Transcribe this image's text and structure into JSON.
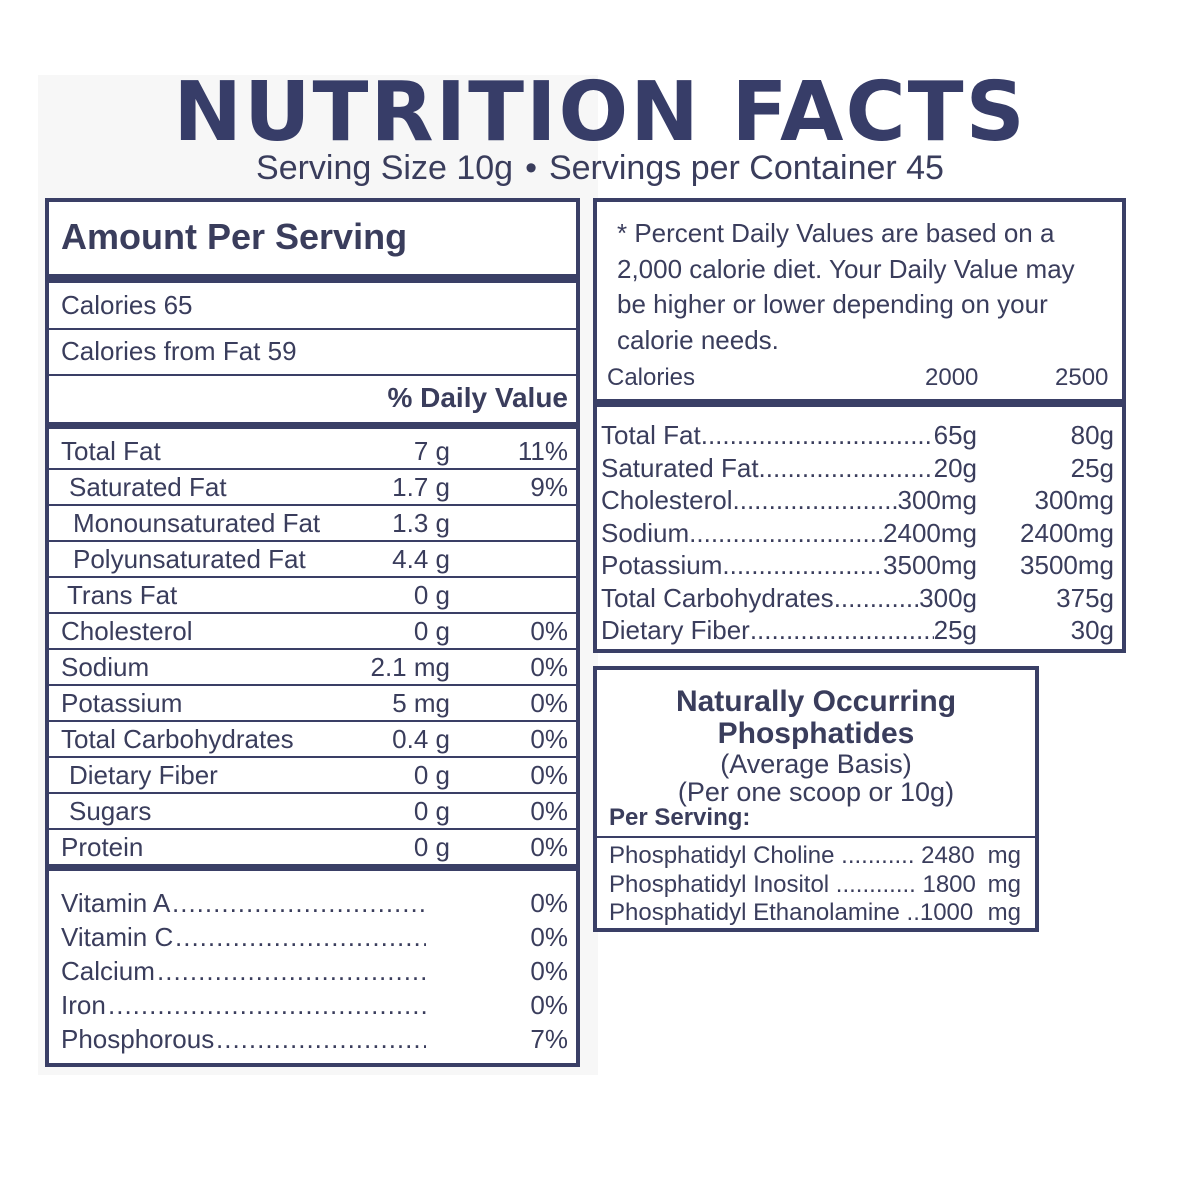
{
  "title": "NUTRITION FACTS",
  "serving_size": "Serving Size 10g",
  "bullet": "•",
  "servings_per_container": "Servings per Container 45",
  "amount_per_serving": "Amount Per Serving",
  "calories": "Calories  65",
  "calories_from_fat": "Calories from Fat  59",
  "daily_value_header": "% Daily Value",
  "nutrients": [
    {
      "label": "Total Fat",
      "amount": "7 g",
      "percent": "11%"
    },
    {
      "label": "Saturated Fat",
      "amount": "1.7 g",
      "percent": "9%"
    },
    {
      "label": "Monounsaturated Fat",
      "amount": "1.3 g",
      "percent": ""
    },
    {
      "label": "Polyunsaturated Fat",
      "amount": "4.4 g",
      "percent": ""
    },
    {
      "label": "Trans Fat",
      "amount": "0 g",
      "percent": ""
    },
    {
      "label": "Cholesterol",
      "amount": "0 g",
      "percent": "0%"
    },
    {
      "label": "Sodium",
      "amount": "2.1 mg",
      "percent": "0%"
    },
    {
      "label": "Potassium",
      "amount": "5 mg",
      "percent": "0%"
    },
    {
      "label": "Total Carbohydrates",
      "amount": "0.4 g",
      "percent": "0%"
    },
    {
      "label": "Dietary Fiber",
      "amount": "0 g",
      "percent": "0%"
    },
    {
      "label": "Sugars",
      "amount": "0 g",
      "percent": "0%"
    },
    {
      "label": "Protein",
      "amount": "0 g",
      "percent": "0%"
    }
  ],
  "vitamins": [
    {
      "label": "Vitamin A",
      "percent": "0%"
    },
    {
      "label": "Vitamin C",
      "percent": "0%"
    },
    {
      "label": "Calcium",
      "percent": "0%"
    },
    {
      "label": "Iron",
      "percent": "0%"
    },
    {
      "label": "Phosphorous",
      "percent": "7%"
    }
  ],
  "daily_value_note": "* Percent Daily Values are based on a 2,000 calorie diet. Your Daily Value may be higher or lower depending on your calorie needs.",
  "reference_header": {
    "label": "Calories",
    "col1": "2000",
    "col2": "2500"
  },
  "reference_rows": [
    {
      "label": "Total Fat",
      "v2000": "65g",
      "v2500": "80g"
    },
    {
      "label": " Saturated Fat",
      "v2000": "20g",
      "v2500": "25g"
    },
    {
      "label": "Cholesterol ",
      "v2000": "300mg",
      "v2500": "300mg"
    },
    {
      "label": " Sodium ",
      "v2000": "2400mg",
      "v2500": "2400mg"
    },
    {
      "label": "Potassium",
      "v2000": "3500mg",
      "v2500": "3500mg"
    },
    {
      "label": "Total Carbohydrates ",
      "v2000": "300g",
      "v2500": "375g"
    },
    {
      "label": " Dietary Fiber",
      "v2000": "25g",
      "v2500": "30g"
    }
  ],
  "phosphatides": {
    "title_line1": "Naturally Occurring",
    "title_line2": "Phosphatides",
    "basis": "(Average Basis)",
    "scoop": "(Per one scoop or 10g)",
    "per_serving": "Per Serving:",
    "items": [
      {
        "text": "Phosphatidyl Choline ........... 2480",
        "unit": "mg"
      },
      {
        "text": "Phosphatidyl Inositol ............ 1800",
        "unit": "mg"
      },
      {
        "text": "Phosphatidyl Ethanolamine ..1000",
        "unit": "mg"
      }
    ]
  }
}
